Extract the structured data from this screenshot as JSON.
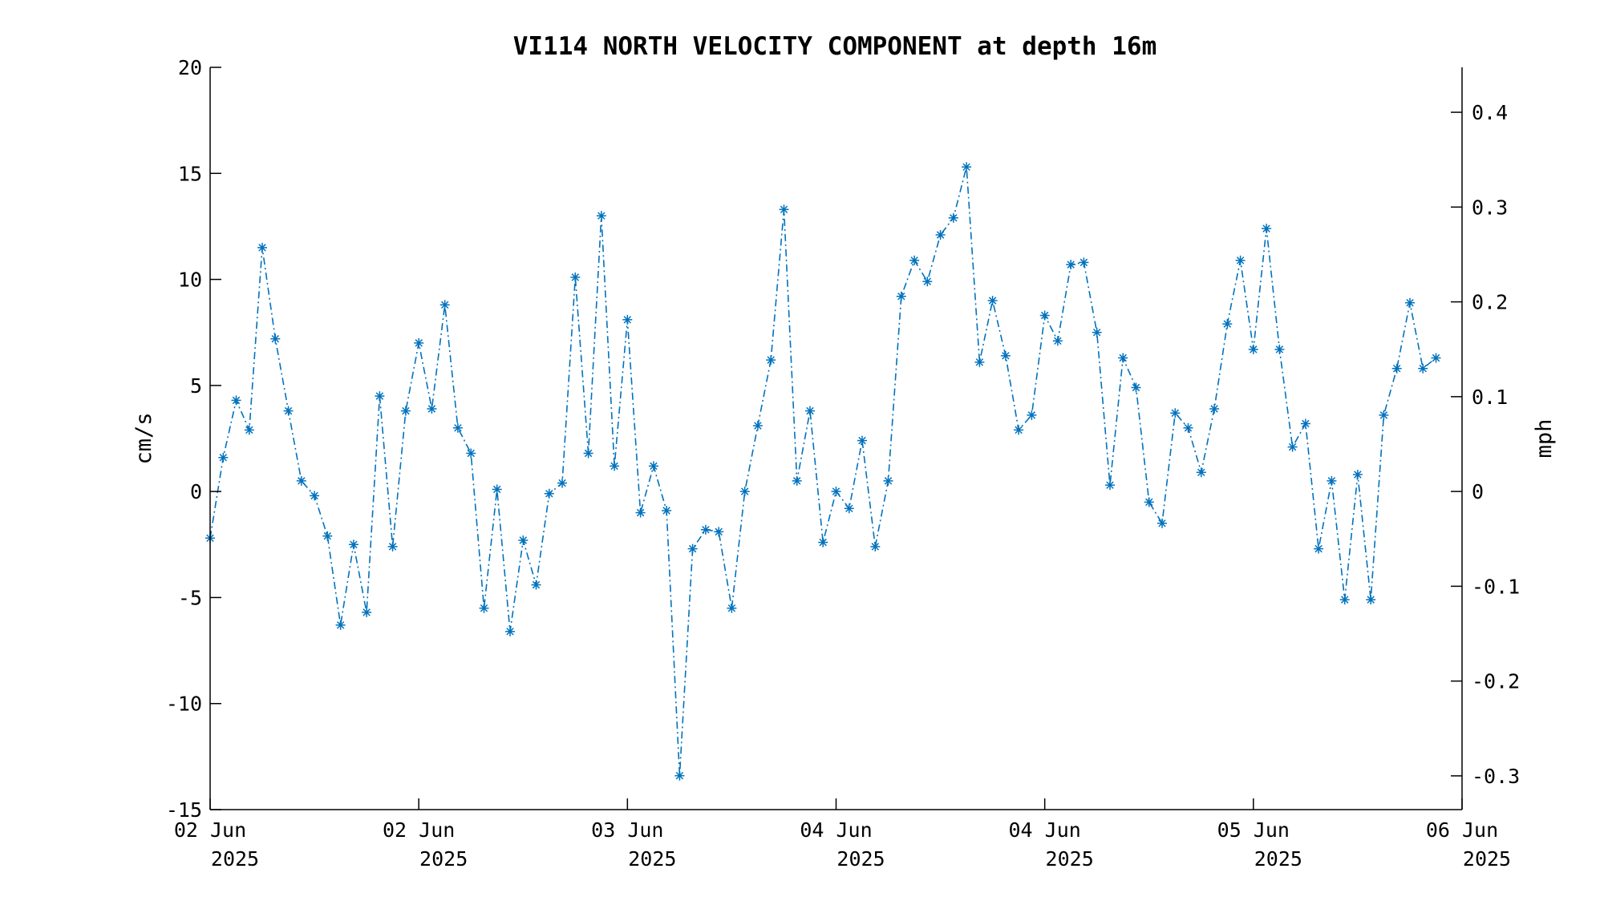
{
  "chart_data": {
    "type": "line",
    "title": "VI114 NORTH VELOCITY COMPONENT at depth 16m",
    "ylabel": "cm/s",
    "ylabel_right": "mph",
    "ylim": [
      -15,
      20
    ],
    "ylim_right": [
      -0.3356,
      0.4474
    ],
    "yticks": [
      "20",
      "15",
      "10",
      "5",
      "0",
      "-5",
      "-10",
      "-15"
    ],
    "yticks_right": [
      "0.4",
      "0.3",
      "0.2",
      "0.1",
      "0",
      "-0.1",
      "-0.2",
      "-0.3"
    ],
    "yticks_right_values": [
      0.4,
      0.3,
      0.2,
      0.1,
      0,
      -0.1,
      -0.2,
      -0.3
    ],
    "x_tick_labels": [
      [
        "02 Jun",
        "2025"
      ],
      [
        "02 Jun",
        "2025"
      ],
      [
        "03 Jun",
        "2025"
      ],
      [
        "04 Jun",
        "2025"
      ],
      [
        "04 Jun",
        "2025"
      ],
      [
        "05 Jun",
        "2025"
      ],
      [
        "06 Jun",
        "2025"
      ]
    ],
    "x_tick_positions": [
      0,
      16,
      32,
      48,
      64,
      80,
      96
    ],
    "xlim": [
      0,
      96
    ],
    "line_style": "dash-dot",
    "marker": "asterisk",
    "grid": false,
    "colors": {
      "series": "#0072BD",
      "axes": "#000000"
    },
    "series": [
      {
        "values": [
          -2.2,
          1.6,
          4.3,
          2.9,
          11.5,
          7.2,
          3.8,
          0.5,
          -0.2,
          -2.1,
          -6.3,
          -2.5,
          -5.7,
          4.5,
          -2.6,
          3.8,
          7.0,
          3.9,
          8.8,
          3.0,
          1.8,
          -5.5,
          0.1,
          -6.6,
          -2.3,
          -4.4,
          -0.1,
          0.4,
          10.1,
          1.8,
          13.0,
          1.2,
          8.1,
          -1.0,
          1.2,
          -0.9,
          -13.4,
          -2.7,
          -1.8,
          -1.9,
          -5.5,
          0.0,
          3.1,
          6.2,
          13.3,
          0.5,
          3.8,
          -2.4,
          0.0,
          -0.8,
          2.4,
          -2.6,
          0.5,
          9.2,
          10.9,
          9.9,
          12.1,
          12.9,
          15.3,
          6.1,
          9.0,
          6.4,
          2.9,
          3.6,
          8.3,
          7.1,
          10.7,
          10.8,
          7.5,
          0.3,
          6.3,
          4.9,
          -0.5,
          -1.5,
          3.7,
          3.0,
          0.9,
          3.9,
          7.9,
          10.9,
          6.7,
          12.4,
          6.7,
          2.1,
          3.2,
          -2.7,
          0.5,
          -5.1,
          0.8,
          -5.1,
          3.6,
          5.8,
          8.9,
          5.8,
          6.3
        ]
      }
    ]
  }
}
